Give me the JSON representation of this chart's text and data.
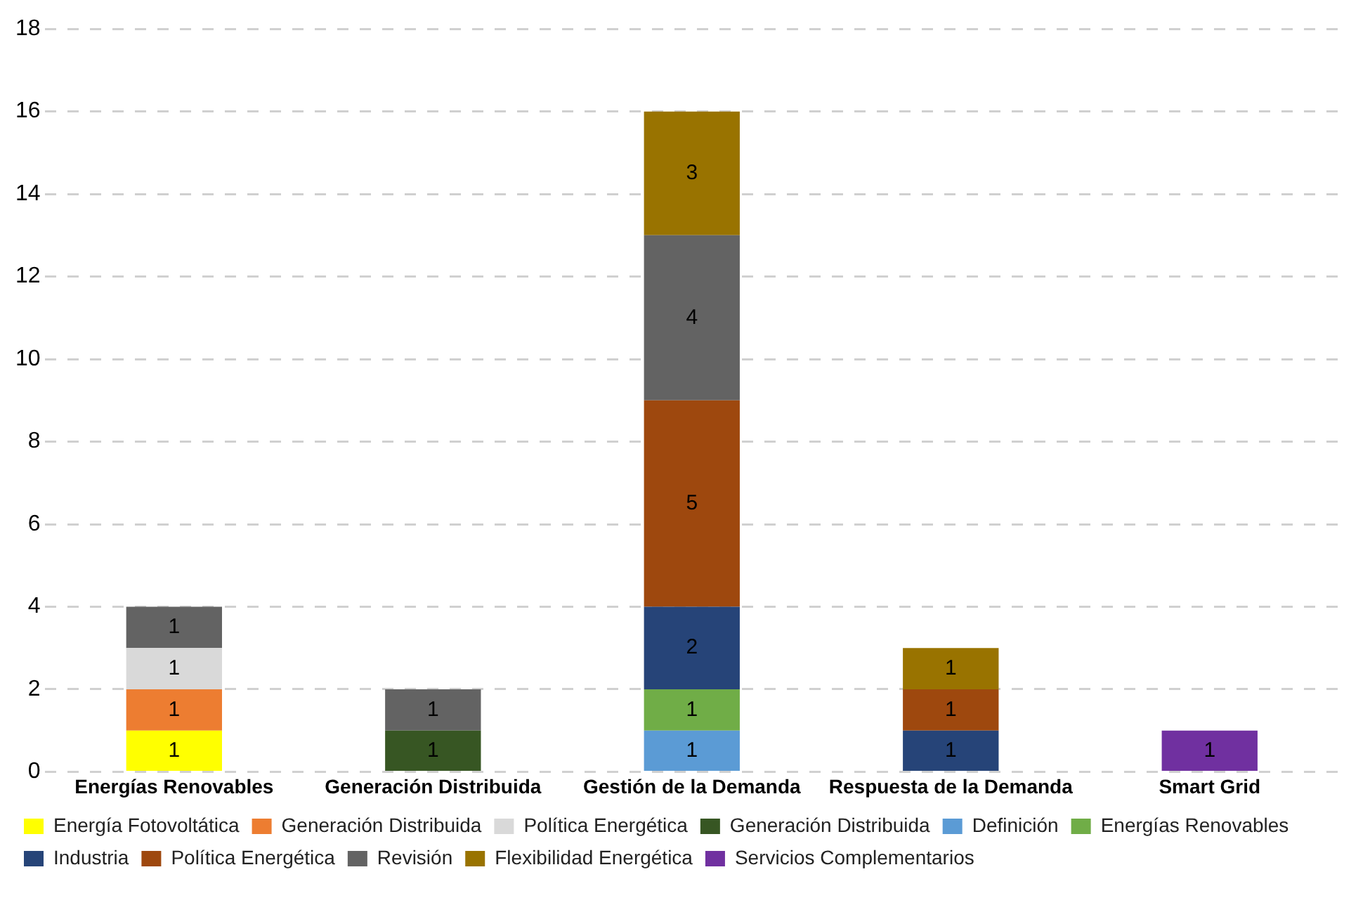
{
  "chart_data": {
    "type": "bar",
    "stacked": true,
    "categories": [
      "Energías Renovables",
      "Generación Distribuida",
      "Gestión de la Demanda",
      "Respuesta de la Demanda",
      "Smart Grid"
    ],
    "series": [
      {
        "name": "Energía Fotovoltática",
        "color": "#ffff00",
        "values": [
          1,
          null,
          null,
          null,
          null
        ]
      },
      {
        "name": "Generación Distribuida",
        "color": "#ed7d31",
        "values": [
          1,
          null,
          null,
          null,
          null
        ]
      },
      {
        "name": "Política Energética",
        "color": "#d9d9d9",
        "values": [
          1,
          null,
          null,
          null,
          null
        ]
      },
      {
        "name": "Generación Distribuida",
        "color": "#375623",
        "values": [
          null,
          1,
          null,
          null,
          null
        ]
      },
      {
        "name": "Definición",
        "color": "#5b9bd5",
        "values": [
          null,
          null,
          1,
          null,
          null
        ]
      },
      {
        "name": "Energías Renovables",
        "color": "#70ad47",
        "values": [
          null,
          null,
          1,
          null,
          null
        ]
      },
      {
        "name": "Industria",
        "color": "#264478",
        "values": [
          null,
          null,
          2,
          1,
          null
        ]
      },
      {
        "name": "Política Energética",
        "color": "#9e480e",
        "values": [
          null,
          null,
          5,
          1,
          null
        ]
      },
      {
        "name": "Revisión",
        "color": "#636363",
        "values": [
          1,
          1,
          4,
          null,
          null
        ]
      },
      {
        "name": "Flexibilidad Energética",
        "color": "#997300",
        "values": [
          null,
          null,
          3,
          1,
          null
        ]
      },
      {
        "name": "Servicios Complementarios",
        "color": "#7030a0",
        "values": [
          null,
          null,
          null,
          null,
          1
        ]
      }
    ],
    "ylim": [
      0,
      18
    ],
    "yticks": [
      0,
      2,
      4,
      6,
      8,
      10,
      12,
      14,
      16,
      18
    ],
    "grid": "y",
    "legend": "bottom",
    "data_labels": true
  }
}
